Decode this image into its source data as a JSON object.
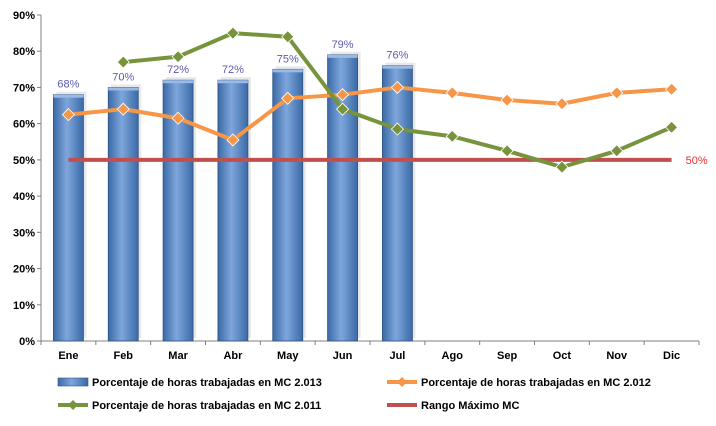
{
  "chart_data": {
    "type": "bar",
    "categories": [
      "Ene",
      "Feb",
      "Mar",
      "Abr",
      "May",
      "Jun",
      "Jul",
      "Ago",
      "Sep",
      "Oct",
      "Nov",
      "Dic"
    ],
    "y_tick_labels": [
      "0%",
      "10%",
      "20%",
      "30%",
      "40%",
      "50%",
      "60%",
      "70%",
      "80%",
      "90%"
    ],
    "ylim": [
      0,
      90
    ],
    "grid": false,
    "legend_position": "bottom",
    "series": [
      {
        "name": "Porcentaje de horas trabajadas en MC 2.013",
        "kind": "bar",
        "color": "#4f81bd",
        "values": [
          68,
          70,
          72,
          72,
          75,
          79,
          76,
          null,
          null,
          null,
          null,
          null
        ],
        "data_labels": [
          "68%",
          "70%",
          "72%",
          "72%",
          "75%",
          "79%",
          "76%"
        ]
      },
      {
        "name": "Porcentaje de horas trabajadas en MC 2.012",
        "kind": "line",
        "color": "#f79646",
        "values": [
          62.5,
          64,
          61.5,
          55.5,
          67,
          68,
          70,
          68.5,
          66.5,
          65.5,
          68.5,
          69.5
        ]
      },
      {
        "name": "Porcentaje de horas trabajadas en MC 2.011",
        "kind": "line",
        "color": "#77933c",
        "values": [
          null,
          77,
          78.5,
          85,
          84,
          64,
          58.5,
          56.5,
          52.5,
          48,
          52.5,
          59
        ]
      },
      {
        "name": "Rango Máximo MC",
        "kind": "reference",
        "color": "#c0504d",
        "value": 50,
        "label": "50%"
      }
    ]
  }
}
